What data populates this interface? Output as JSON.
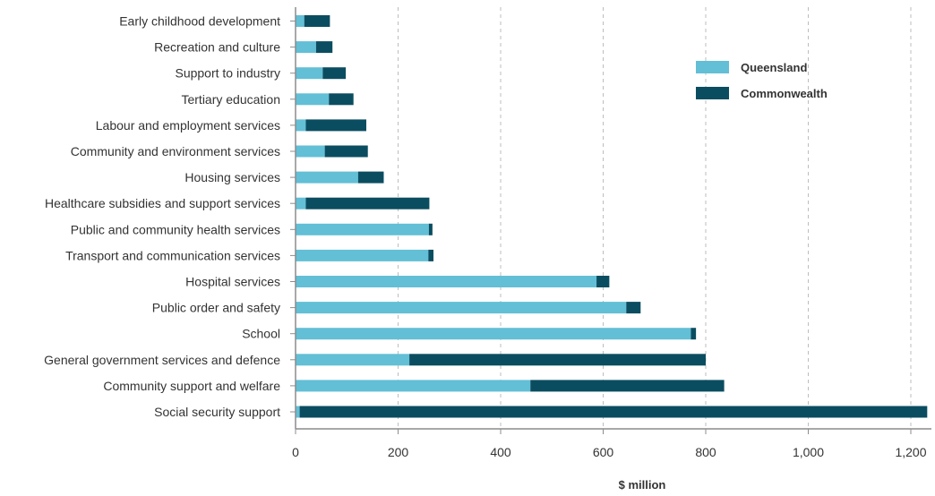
{
  "chart_data": {
    "type": "bar",
    "orientation": "horizontal",
    "stacked": true,
    "title": "",
    "xlabel": "$ million",
    "ylabel": "",
    "xlim": [
      0,
      1200
    ],
    "x_ticks": [
      0,
      200,
      400,
      600,
      800,
      1000,
      1200
    ],
    "x_tick_labels": [
      "0",
      "200",
      "400",
      "600",
      "800",
      "1,000",
      "1,200"
    ],
    "grid": "vertical dashed",
    "legend_position": "top-right",
    "categories": [
      "Early childhood development",
      "Recreation and culture",
      "Support to industry",
      "Tertiary education",
      "Labour and employment services",
      "Community and environment services",
      "Housing services",
      "Healthcare subsidies and support services",
      "Public and community health services",
      "Transport and communication services",
      "Hospital services",
      "Public order and safety",
      "School",
      "General government services and defence",
      "Community support and welfare",
      "Social security support"
    ],
    "series": [
      {
        "name": "Queensland",
        "color": "#62bfd6",
        "values": [
          17,
          40,
          53,
          65,
          20,
          57,
          122,
          20,
          260,
          259,
          587,
          645,
          771,
          222,
          458,
          8
        ]
      },
      {
        "name": "Commonwealth",
        "color": "#0b4d60",
        "values": [
          50,
          32,
          45,
          48,
          118,
          84,
          50,
          241,
          7,
          10,
          25,
          28,
          10,
          578,
          378,
          1224
        ]
      }
    ]
  }
}
